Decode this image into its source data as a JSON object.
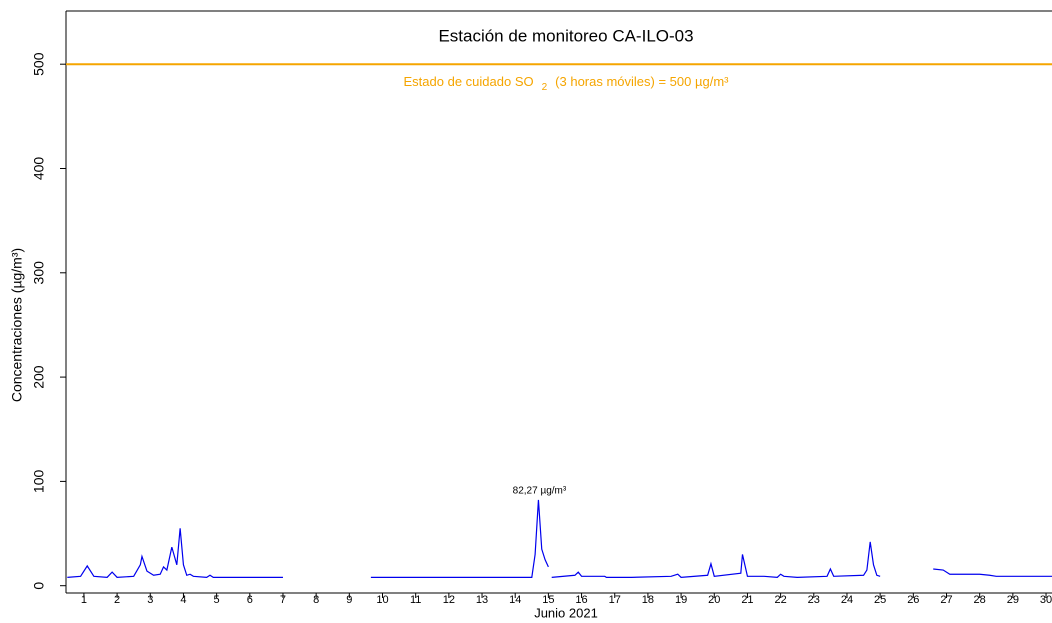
{
  "chart_data": {
    "type": "line",
    "title": "Estación de monitoreo  CA-ILO-03",
    "x_label": "Junio 2021",
    "y_label": "Concentraciones (µg/m³)",
    "xlim": [
      0.46,
      30.18
    ],
    "ylim": [
      -7,
      551
    ],
    "xticks": [
      {
        "value": 1,
        "label": "1"
      },
      {
        "value": 2,
        "label": "2"
      },
      {
        "value": 3,
        "label": "3"
      },
      {
        "value": 4,
        "label": "4"
      },
      {
        "value": 5,
        "label": "5"
      },
      {
        "value": 6,
        "label": "6"
      },
      {
        "value": 7,
        "label": "7"
      },
      {
        "value": 8,
        "label": "8"
      },
      {
        "value": 9,
        "label": "9"
      },
      {
        "value": 10,
        "label": "10"
      },
      {
        "value": 11,
        "label": "11"
      },
      {
        "value": 12,
        "label": "12"
      },
      {
        "value": 13,
        "label": "13"
      },
      {
        "value": 14,
        "label": "14"
      },
      {
        "value": 15,
        "label": "15"
      },
      {
        "value": 16,
        "label": "16"
      },
      {
        "value": 17,
        "label": "17"
      },
      {
        "value": 18,
        "label": "18"
      },
      {
        "value": 19,
        "label": "19"
      },
      {
        "value": 20,
        "label": "20"
      },
      {
        "value": 21,
        "label": "21"
      },
      {
        "value": 22,
        "label": "22"
      },
      {
        "value": 23,
        "label": "23"
      },
      {
        "value": 24,
        "label": "24"
      },
      {
        "value": 25,
        "label": "25"
      },
      {
        "value": 26,
        "label": "26"
      },
      {
        "value": 27,
        "label": "27"
      },
      {
        "value": 28,
        "label": "28"
      },
      {
        "value": 29,
        "label": "29"
      },
      {
        "value": 30,
        "label": "30"
      }
    ],
    "yticks": [
      0,
      100,
      200,
      300,
      400,
      500
    ],
    "series": [
      {
        "name": "SO2",
        "color": "#0000ee",
        "x": [
          0.5,
          0.9,
          1.1,
          1.3,
          1.7,
          1.85,
          2.0,
          2.5,
          2.7,
          2.75,
          2.9,
          3.1,
          3.3,
          3.4,
          3.5,
          3.65,
          3.8,
          3.9,
          4.0,
          4.1,
          4.2,
          4.3,
          4.7,
          4.8,
          4.9,
          5.5,
          6.0,
          6.5,
          7.0,
          8.3,
          9.65,
          10.5,
          11.5,
          12.5,
          13.5,
          14.5,
          14.6,
          14.7,
          14.8,
          14.9,
          15.0,
          15.05,
          15.1,
          15.8,
          15.9,
          16.0,
          16.7,
          16.75,
          16.85,
          17.5,
          18.7,
          18.9,
          19.0,
          19.8,
          19.9,
          20.0,
          20.8,
          20.85,
          21.0,
          21.5,
          21.9,
          22.0,
          22.1,
          22.5,
          23.4,
          23.5,
          23.6,
          24.5,
          24.6,
          24.7,
          24.8,
          24.9,
          25.0,
          25.8,
          26.6,
          26.9,
          27.1,
          27.5,
          28.0,
          28.3,
          28.5,
          29.0,
          29.5,
          30.18
        ],
        "values": [
          8,
          9,
          19,
          9,
          8,
          13,
          8,
          9,
          20,
          28,
          14,
          10,
          11,
          18,
          15,
          37,
          20,
          55,
          20,
          10,
          11,
          9,
          8,
          10,
          8,
          8,
          8,
          8,
          8,
          null,
          8,
          8,
          8,
          8,
          8,
          8,
          30,
          82.27,
          35,
          25,
          18,
          null,
          8,
          10,
          13,
          9,
          9,
          8,
          8,
          8,
          9,
          11,
          8,
          10,
          21,
          9,
          12,
          30,
          9,
          9,
          8,
          11,
          9,
          8,
          9,
          16,
          9,
          10,
          15,
          42,
          20,
          10,
          9,
          null,
          16,
          15,
          11,
          11,
          11,
          10,
          9,
          9,
          9,
          9
        ]
      }
    ],
    "reference_line": {
      "value": 500,
      "color": "#f5a500",
      "label_parts": [
        "Estado de cuidado SO",
        "2",
        "(3 horas móviles) = 500 µg/m³"
      ]
    },
    "annotation": {
      "text": "82,27 µg/m³",
      "x": 14.7,
      "y": 82.27
    }
  }
}
